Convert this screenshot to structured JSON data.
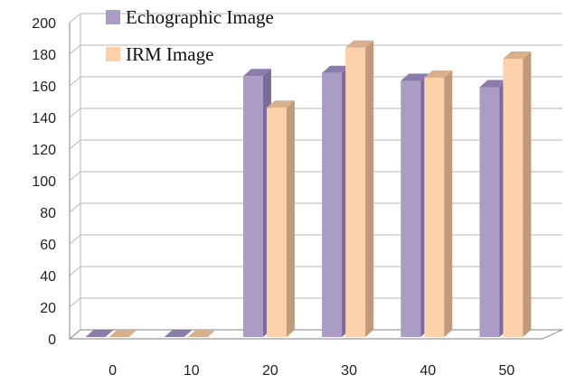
{
  "chart_data": {
    "type": "bar",
    "title": "",
    "xlabel": "",
    "ylabel": "",
    "categories": [
      "0",
      "10",
      "20",
      "30",
      "40",
      "50"
    ],
    "series": [
      {
        "name": "Echographic Image",
        "values": [
          0,
          0,
          165,
          167,
          162,
          158
        ]
      },
      {
        "name": "IRM Image",
        "values": [
          0,
          0,
          145,
          183,
          164,
          176
        ]
      }
    ],
    "ylim": [
      0,
      200
    ],
    "yticks": [
      "0",
      "20",
      "40",
      "60",
      "80",
      "100",
      "120",
      "140",
      "160",
      "180",
      "200"
    ],
    "grid": true,
    "legend_position": "top-left",
    "style": "3d-clustered-column",
    "colors": {
      "echo_front": "#ab9cc6",
      "echo_side": "#7a6b98",
      "echo_top": "#8c7cab",
      "irm_front": "#fcd0a8",
      "irm_side": "#c09a7a",
      "irm_top": "#d8b08c",
      "grid": "#b7b7b7"
    }
  }
}
